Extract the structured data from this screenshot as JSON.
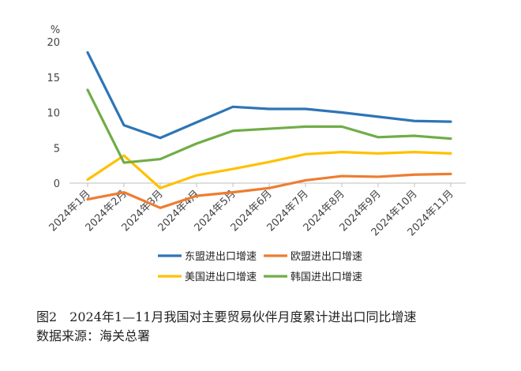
{
  "chart_data": {
    "type": "line",
    "title": "",
    "ylabel": "%",
    "xlabel": "",
    "ylim": [
      0,
      20
    ],
    "yticks": [
      "20",
      "15",
      "10",
      "5",
      "0"
    ],
    "categories": [
      "2024年1月",
      "2024年2月",
      "2024年3月",
      "2024年4月",
      "2024年5月",
      "2024年6月",
      "2024年7月",
      "2024年8月",
      "2024年9月",
      "2024年10月",
      "2024年11月"
    ],
    "series": [
      {
        "name": "东盟进出口增速",
        "color": "#2E75B6",
        "values": [
          18.5,
          8.2,
          6.4,
          8.6,
          10.8,
          10.5,
          10.5,
          10.0,
          9.4,
          8.8,
          8.7
        ]
      },
      {
        "name": "欧盟进出口增速",
        "color": "#ED7D31",
        "values": [
          -2.3,
          -1.3,
          -3.5,
          -1.8,
          -1.3,
          -0.7,
          0.4,
          1.0,
          0.9,
          1.2,
          1.3
        ]
      },
      {
        "name": "美国进出口增速",
        "color": "#FFC000",
        "values": [
          0.5,
          3.9,
          -0.7,
          1.1,
          2.0,
          3.0,
          4.1,
          4.4,
          4.2,
          4.4,
          4.2
        ]
      },
      {
        "name": "韩国进出口增速",
        "color": "#70AD47",
        "values": [
          13.2,
          2.9,
          3.4,
          5.6,
          7.4,
          7.7,
          8.0,
          8.0,
          6.5,
          6.7,
          6.3
        ]
      }
    ],
    "grid": false,
    "legend_position": "bottom"
  },
  "caption": {
    "title": "图2　2024年1—11月我国对主要贸易伙伴月度累计进出口同比增速",
    "source": "数据来源：海关总署"
  }
}
